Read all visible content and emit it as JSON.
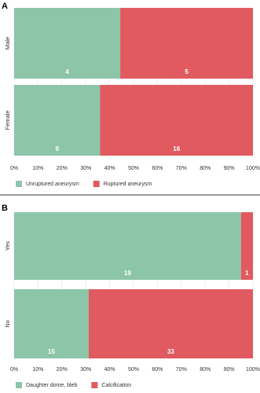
{
  "chart_data": [
    {
      "type": "bar",
      "panel": "A",
      "stacked": "percent",
      "orientation": "horizontal",
      "categories": [
        "Male",
        "Female"
      ],
      "series": [
        {
          "name": "Unruptured aneurysm",
          "color": "#8dc5a8",
          "values": [
            4,
            9
          ]
        },
        {
          "name": "Ruptured aneurysm",
          "color": "#e05a5f",
          "values": [
            5,
            16
          ]
        }
      ],
      "xlim": [
        0,
        100
      ],
      "xticks": [
        {
          "value": 0,
          "label": "0%"
        },
        {
          "value": 10,
          "label": "10%"
        },
        {
          "value": 20,
          "label": "20%"
        },
        {
          "value": 30,
          "label": "30%"
        },
        {
          "value": 40,
          "label": "40%"
        },
        {
          "value": 50,
          "label": "50%"
        },
        {
          "value": 60,
          "label": "60%"
        },
        {
          "value": 70,
          "label": "70%"
        },
        {
          "value": 80,
          "label": "80%"
        },
        {
          "value": 90,
          "label": "90%"
        },
        {
          "value": 100,
          "label": "100%"
        }
      ],
      "grid": true,
      "legend": "bottom-left"
    },
    {
      "type": "bar",
      "panel": "B",
      "stacked": "percent",
      "orientation": "horizontal",
      "categories": [
        "Yes",
        "No"
      ],
      "series": [
        {
          "name": "Daughter dome, bleb",
          "color": "#8dc5a8",
          "values": [
            19,
            15
          ]
        },
        {
          "name": "Calcification",
          "color": "#e05a5f",
          "values": [
            1,
            33
          ]
        }
      ],
      "xlim": [
        0,
        100
      ],
      "xticks": [
        {
          "value": 0,
          "label": "0%"
        },
        {
          "value": 10,
          "label": "10%"
        },
        {
          "value": 20,
          "label": "20%"
        },
        {
          "value": 30,
          "label": "30%"
        },
        {
          "value": 40,
          "label": "40%"
        },
        {
          "value": 50,
          "label": "50%"
        },
        {
          "value": 60,
          "label": "60%"
        },
        {
          "value": 70,
          "label": "70%"
        },
        {
          "value": 80,
          "label": "80%"
        },
        {
          "value": 90,
          "label": "90%"
        },
        {
          "value": 100,
          "label": "100%"
        }
      ],
      "grid": true,
      "legend": "bottom-left"
    }
  ]
}
